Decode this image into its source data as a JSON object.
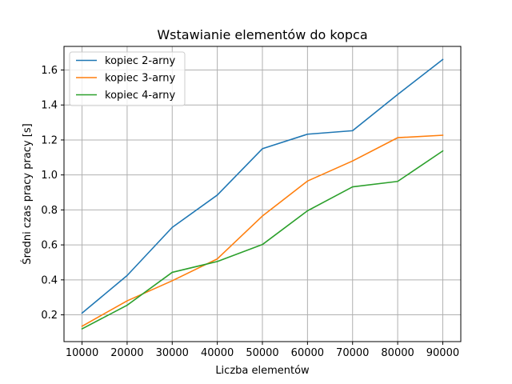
{
  "chart_data": {
    "type": "line",
    "title": "Wstawianie elementów do kopca",
    "xlabel": "Liczba elementów",
    "ylabel": "Średni czas pracy pracy [s]",
    "x": [
      10000,
      20000,
      30000,
      40000,
      50000,
      60000,
      70000,
      80000,
      90000
    ],
    "x_tick_labels": [
      "10000",
      "20000",
      "30000",
      "40000",
      "50000",
      "60000",
      "70000",
      "80000",
      "90000"
    ],
    "y_ticks": [
      0.2,
      0.4,
      0.6,
      0.8,
      1.0,
      1.2,
      1.4,
      1.6
    ],
    "y_tick_labels": [
      "0.2",
      "0.4",
      "0.6",
      "0.8",
      "1.0",
      "1.2",
      "1.4",
      "1.6"
    ],
    "xlim": [
      6000,
      94000
    ],
    "ylim": [
      0.047,
      1.735
    ],
    "grid": true,
    "legend_position": "upper-left",
    "series": [
      {
        "name": "kopiec 2-arny",
        "color": "#1f77b4",
        "values": [
          0.21,
          0.425,
          0.7,
          0.885,
          1.15,
          1.233,
          1.253,
          1.46,
          1.66
        ]
      },
      {
        "name": "kopiec 3-arny",
        "color": "#ff7f0e",
        "values": [
          0.135,
          0.28,
          0.395,
          0.52,
          0.765,
          0.965,
          1.08,
          1.213,
          1.227
        ]
      },
      {
        "name": "kopiec 4-arny",
        "color": "#2ca02c",
        "values": [
          0.12,
          0.255,
          0.443,
          0.505,
          0.602,
          0.795,
          0.932,
          0.963,
          1.137
        ]
      }
    ]
  }
}
